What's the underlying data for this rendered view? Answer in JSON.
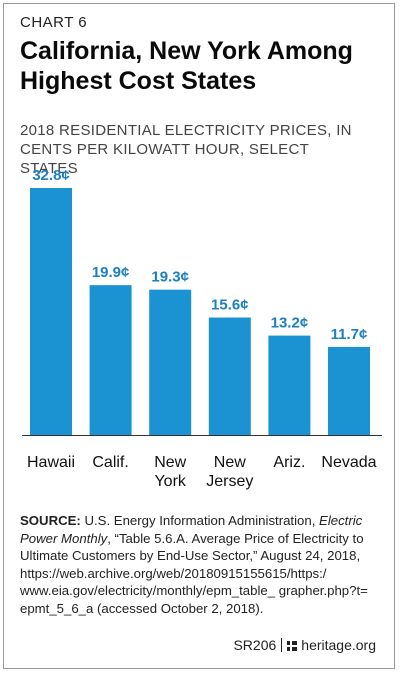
{
  "header": {
    "kicker": "CHART 6",
    "title": "California, New York Among Highest Cost States",
    "subtitle": "2018 RESIDENTIAL ELECTRICITY PRICES, IN CENTS PER KILOWATT HOUR, SELECT STATES"
  },
  "chart_data": {
    "type": "bar",
    "categories": [
      "Hawaii",
      "Calif.",
      "New York",
      "New Jersey",
      "Ariz.",
      "Nevada"
    ],
    "category_lines": [
      [
        "Hawaii"
      ],
      [
        "Calif."
      ],
      [
        "New",
        "York"
      ],
      [
        "New",
        "Jersey"
      ],
      [
        "Ariz."
      ],
      [
        "Nevada"
      ]
    ],
    "values": [
      32.8,
      19.9,
      19.3,
      15.6,
      13.2,
      11.7
    ],
    "data_labels": [
      "32.8¢",
      "19.9¢",
      "19.3¢",
      "15.6¢",
      "13.2¢",
      "11.7¢"
    ],
    "ylim": [
      0,
      32.8
    ],
    "grid": false,
    "colors": {
      "bar": "#1b93d2",
      "label": "#1b7fc0",
      "axis": "#333333"
    }
  },
  "source": {
    "label": "SOURCE:",
    "text_before": " U.S. Energy Information Administration, ",
    "italic": "Electric Power Monthly",
    "text_after": ", “Table 5.6.A. Average Price of Electricity to Ultimate Customers by End-Use Sector,” August 24, 2018, https://web.archive.org/web/20180915155615/https:/ www.eia.gov/electricity/monthly/epm_table_ grapher.php?t= epmt_5_6_a (accessed October 2, 2018)."
  },
  "footer": {
    "report_id": "SR206",
    "site": "heritage.org"
  }
}
